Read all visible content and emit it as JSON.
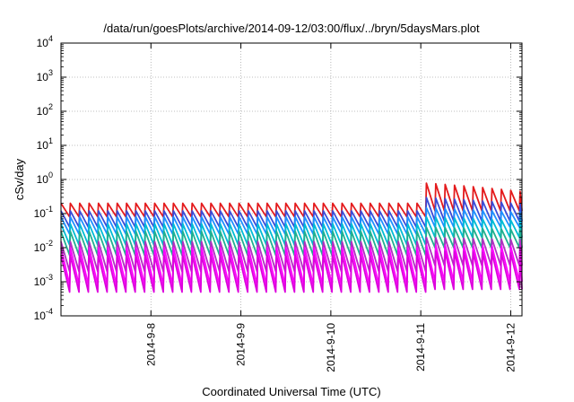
{
  "chart_data": {
    "type": "line",
    "title": "/data/run/goesPlots/archive/2014-09-12/03:00/flux/../bryn/5daysMars.plot",
    "xlabel": "Coordinated Universal Time (UTC)",
    "ylabel": "cSv/day",
    "yscale": "log",
    "ylim": [
      0.0001,
      10000
    ],
    "y_ticks": [
      {
        "base": "10",
        "exp": "-4",
        "value": 0.0001
      },
      {
        "base": "10",
        "exp": "-3",
        "value": 0.001
      },
      {
        "base": "10",
        "exp": "-2",
        "value": 0.01
      },
      {
        "base": "10",
        "exp": "-1",
        "value": 0.1
      },
      {
        "base": "10",
        "exp": "0",
        "value": 1
      },
      {
        "base": "10",
        "exp": "1",
        "value": 10
      },
      {
        "base": "10",
        "exp": "2",
        "value": 100
      },
      {
        "base": "10",
        "exp": "3",
        "value": 1000
      },
      {
        "base": "10",
        "exp": "4",
        "value": 10000
      }
    ],
    "xlim": [
      "2014-09-07T00:00",
      "2014-09-12T03:00"
    ],
    "x_ticks": [
      "2014-9-8",
      "2014-9-9",
      "2014-9-10",
      "2014-9-11",
      "2014-9-12"
    ],
    "grid": true,
    "legend": "none",
    "sawtooth_period_hours": 2.5,
    "series": [
      {
        "color": "#e41a1c",
        "peak_before": 0.2,
        "trough_before": 0.08,
        "peak_after": 0.8,
        "trough_after": 0.12
      },
      {
        "color": "#3a4bd8",
        "peak_before": 0.12,
        "trough_before": 0.04,
        "peak_after": 0.3,
        "trough_after": 0.06
      },
      {
        "color": "#1e90ff",
        "peak_before": 0.08,
        "trough_before": 0.025,
        "peak_after": 0.15,
        "trough_after": 0.04
      },
      {
        "color": "#00bcd4",
        "peak_before": 0.05,
        "trough_before": 0.012,
        "peak_after": 0.08,
        "trough_after": 0.02
      },
      {
        "color": "#20b090",
        "peak_before": 0.03,
        "trough_before": 0.006,
        "peak_after": 0.04,
        "trough_after": 0.01
      },
      {
        "color": "#b030c0",
        "peak_before": 0.015,
        "trough_before": 0.002,
        "peak_after": 0.02,
        "trough_after": 0.003
      },
      {
        "color": "#ff00ff",
        "peak_before": 0.01,
        "trough_before": 0.0008,
        "peak_after": 0.012,
        "trough_after": 0.001
      },
      {
        "color": "#dd00dd",
        "peak_before": 0.006,
        "trough_before": 0.0005,
        "peak_after": 0.008,
        "trough_after": 0.0006
      }
    ],
    "change_time": "2014-09-11T00:00"
  }
}
